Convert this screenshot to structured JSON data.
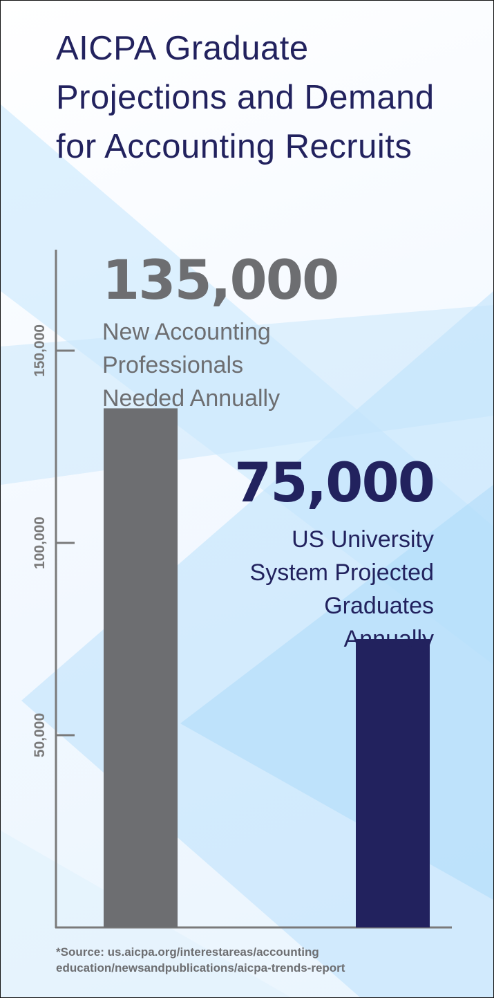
{
  "chart_data": {
    "type": "bar",
    "title": "AICPA Graduate Projections and Demand for Accounting Recruits",
    "categories": [
      "New Accounting Professionals Needed Annually",
      "US University System Projected Graduates Annually"
    ],
    "values": [
      135000,
      75000
    ],
    "value_labels": [
      "135,000",
      "75,000"
    ],
    "descriptions": [
      "New Accounting\nProfessionals\nNeeded Annually",
      "US University\nSystem Projected\nGraduates\nAnnually"
    ],
    "bar_colors": [
      "#6d6e71",
      "#22225e"
    ],
    "yticks": [
      50000,
      100000,
      150000
    ],
    "ytick_labels": [
      "50,000",
      "100,000",
      "150,000"
    ],
    "ylim": [
      0,
      180000
    ],
    "xlabel": "",
    "ylabel": "",
    "grid": false,
    "legend": "none"
  },
  "source": "*Source: us.aicpa.org/interestareas/accounting\n  education/newsandpublications/aicpa-trends-report",
  "colors": {
    "navy": "#22225e",
    "gray": "#6d6e71",
    "axis": "#7a7a7a",
    "background_accent": "#bfe3fb"
  }
}
